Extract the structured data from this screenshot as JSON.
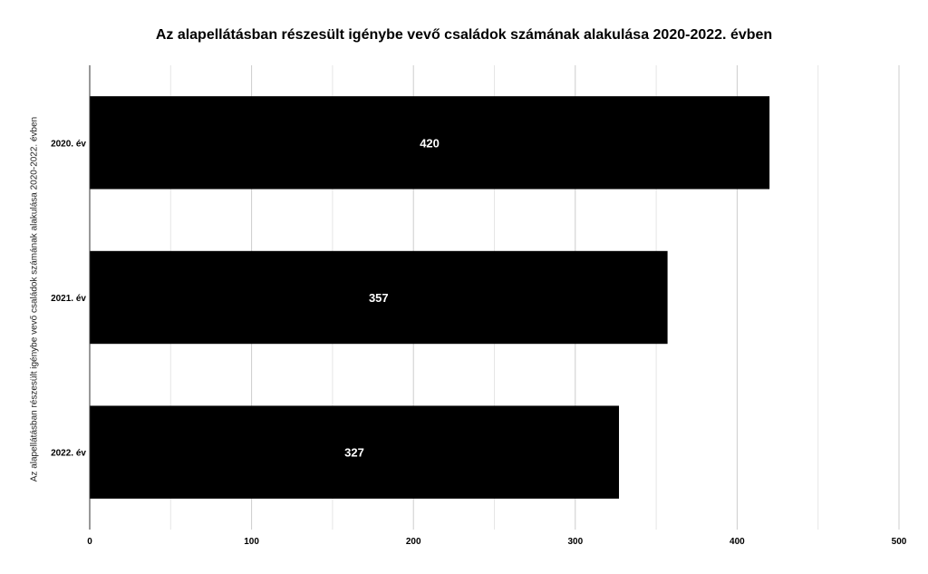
{
  "chart_data": {
    "type": "bar",
    "orientation": "horizontal",
    "title": "Az alapellátásban részesült igénybe vevő családok számának alakulása 2020-2022. évben",
    "ylabel": "Az alapellátásban részesült igénybe vevő családok számának alakulása 2020-2022. évben",
    "xlabel": "",
    "categories": [
      "2020. év",
      "2021. év",
      "2022. év"
    ],
    "values": [
      420,
      357,
      327
    ],
    "data_labels": [
      "420",
      "357",
      "327"
    ],
    "xlim": [
      0,
      500
    ],
    "x_ticks": [
      0,
      100,
      200,
      300,
      400,
      500
    ],
    "x_tick_labels": [
      "0",
      "100",
      "200",
      "300",
      "400",
      "500"
    ],
    "grid": true,
    "legend": "none",
    "bar_color": "#000000",
    "label_color": "#ffffff"
  }
}
